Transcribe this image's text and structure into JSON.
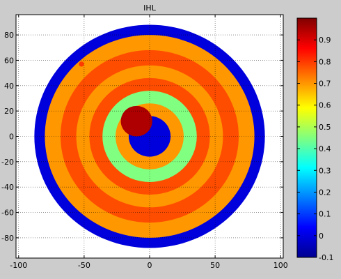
{
  "chart_data": {
    "type": "heatmap",
    "title": "IHL",
    "xlabel": "",
    "ylabel": "",
    "xlim": [
      -102,
      102
    ],
    "ylim": [
      -96,
      96
    ],
    "x_ticks": [
      -100,
      -50,
      0,
      50,
      100
    ],
    "y_ticks": [
      -80,
      -60,
      -40,
      -20,
      0,
      20,
      40,
      60,
      80
    ],
    "grid": true,
    "colorbar": {
      "colormap": "jet",
      "range": [
        -0.1,
        1.0
      ],
      "ticks": [
        -0.1,
        0,
        0.1,
        0.2,
        0.3,
        0.4,
        0.5,
        0.6,
        0.7,
        0.8,
        0.9
      ]
    },
    "rings": [
      {
        "outer_radius": 88,
        "value": 0.0
      },
      {
        "outer_radius": 80,
        "value": 0.7
      },
      {
        "outer_radius": 68,
        "value": 0.78
      },
      {
        "outer_radius": 56,
        "value": 0.7
      },
      {
        "outer_radius": 46,
        "value": 0.78
      },
      {
        "outer_radius": 36,
        "value": 0.45
      },
      {
        "outer_radius": 26,
        "value": 0.7
      },
      {
        "outer_radius": 16,
        "value": 0.0
      }
    ],
    "features": [
      {
        "name": "high-sector",
        "center": [
          -10,
          12
        ],
        "radius": 12,
        "value": 0.95
      },
      {
        "name": "high-cell",
        "center": [
          -52,
          57
        ],
        "radius": 2,
        "value": 0.8
      }
    ]
  }
}
